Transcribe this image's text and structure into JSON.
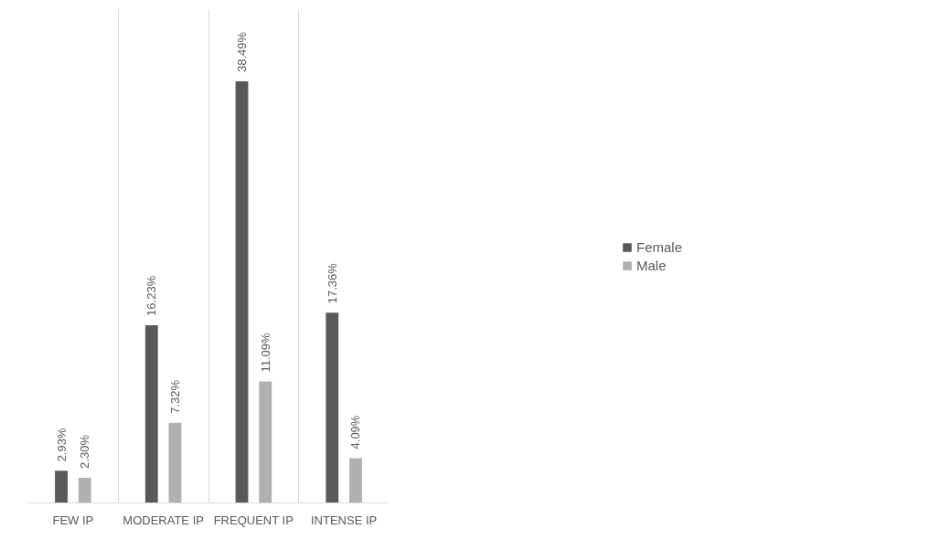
{
  "chart_data": {
    "type": "bar",
    "categories": [
      "FEW IP",
      "MODERATE IP",
      "FREQUENT IP",
      "INTENSE IP"
    ],
    "series": [
      {
        "name": "Female",
        "color": "#595959",
        "values": [
          2.93,
          16.23,
          38.49,
          17.36
        ],
        "value_labels": [
          "2.93%",
          "16.23%",
          "38.49%",
          "17.36%"
        ]
      },
      {
        "name": "Male",
        "color": "#b0b0b0",
        "values": [
          2.3,
          7.32,
          11.09,
          4.09
        ],
        "value_labels": [
          "2.30%",
          "7.32%",
          "11.09%",
          "4.09%"
        ]
      }
    ],
    "grid": "x",
    "legend": "right"
  }
}
